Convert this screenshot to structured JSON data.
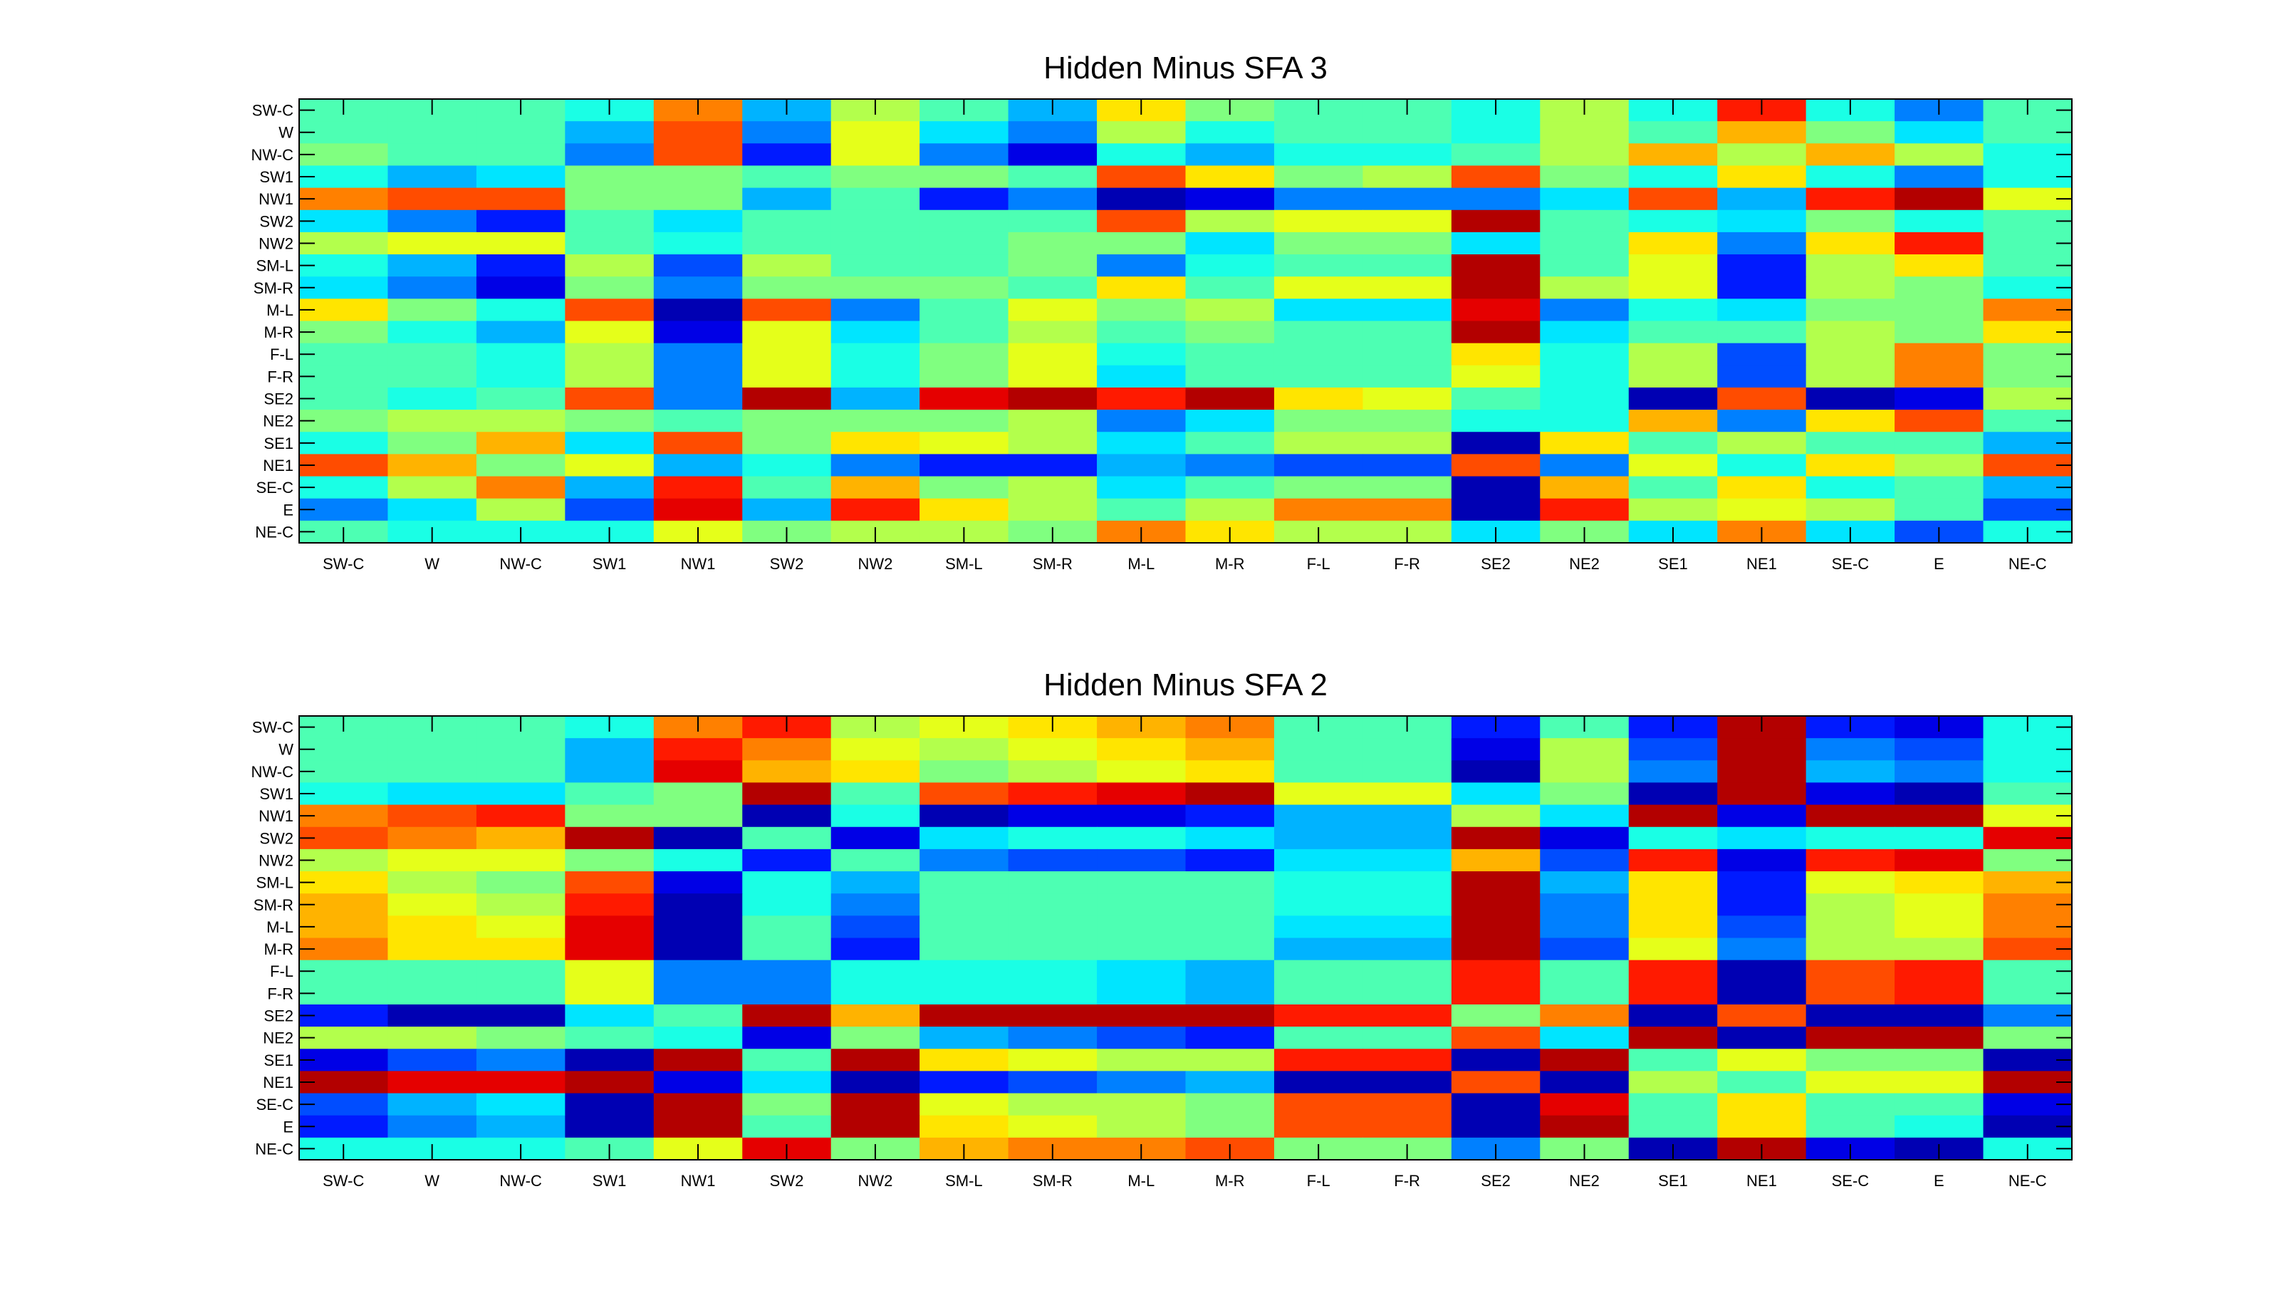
{
  "chart_data": [
    {
      "type": "heatmap",
      "title": "Hidden Minus SFA 3",
      "x_labels": [
        "SW-C",
        "W",
        "NW-C",
        "SW1",
        "NW1",
        "SW2",
        "NW2",
        "SM-L",
        "SM-R",
        "M-L",
        "M-R",
        "F-L",
        "F-R",
        "SE2",
        "NE2",
        "SE1",
        "NE1",
        "SE-C",
        "E",
        "NE-C"
      ],
      "y_labels": [
        "SW-C",
        "W",
        "NW-C",
        "SW1",
        "NW1",
        "SW2",
        "NW2",
        "SM-L",
        "SM-R",
        "M-L",
        "M-R",
        "F-L",
        "F-R",
        "SE2",
        "NE2",
        "SE1",
        "NE1",
        "SE-C",
        "E",
        "NE-C"
      ],
      "colormap": "jet",
      "value_range": [
        0,
        1
      ],
      "values": [
        [
          0.45,
          0.45,
          0.45,
          0.4,
          0.75,
          0.3,
          0.55,
          0.45,
          0.3,
          0.65,
          0.5,
          0.45,
          0.45,
          0.4,
          0.55,
          0.4,
          0.85,
          0.4,
          0.25,
          0.45
        ],
        [
          0.45,
          0.45,
          0.45,
          0.3,
          0.8,
          0.25,
          0.6,
          0.35,
          0.25,
          0.55,
          0.4,
          0.45,
          0.45,
          0.4,
          0.55,
          0.45,
          0.7,
          0.5,
          0.35,
          0.45
        ],
        [
          0.5,
          0.45,
          0.45,
          0.25,
          0.8,
          0.15,
          0.6,
          0.25,
          0.1,
          0.4,
          0.3,
          0.4,
          0.4,
          0.45,
          0.55,
          0.7,
          0.55,
          0.7,
          0.55,
          0.4
        ],
        [
          0.4,
          0.3,
          0.35,
          0.5,
          0.5,
          0.45,
          0.5,
          0.5,
          0.45,
          0.8,
          0.65,
          0.5,
          0.55,
          0.8,
          0.5,
          0.4,
          0.65,
          0.4,
          0.25,
          0.4
        ],
        [
          0.75,
          0.8,
          0.8,
          0.5,
          0.5,
          0.3,
          0.45,
          0.15,
          0.25,
          0.05,
          0.1,
          0.25,
          0.25,
          0.25,
          0.35,
          0.8,
          0.3,
          0.85,
          0.95,
          0.6
        ],
        [
          0.35,
          0.25,
          0.15,
          0.45,
          0.35,
          0.45,
          0.45,
          0.45,
          0.45,
          0.8,
          0.55,
          0.6,
          0.6,
          0.95,
          0.45,
          0.4,
          0.35,
          0.5,
          0.4,
          0.45
        ],
        [
          0.55,
          0.6,
          0.6,
          0.45,
          0.4,
          0.45,
          0.45,
          0.45,
          0.5,
          0.5,
          0.35,
          0.5,
          0.5,
          0.35,
          0.45,
          0.65,
          0.25,
          0.65,
          0.85,
          0.45
        ],
        [
          0.4,
          0.3,
          0.15,
          0.55,
          0.2,
          0.55,
          0.45,
          0.45,
          0.5,
          0.25,
          0.4,
          0.45,
          0.45,
          0.95,
          0.45,
          0.6,
          0.15,
          0.55,
          0.65,
          0.45
        ],
        [
          0.35,
          0.25,
          0.1,
          0.5,
          0.25,
          0.5,
          0.5,
          0.5,
          0.45,
          0.65,
          0.45,
          0.6,
          0.6,
          0.95,
          0.55,
          0.6,
          0.15,
          0.55,
          0.5,
          0.4
        ],
        [
          0.65,
          0.5,
          0.4,
          0.8,
          0.05,
          0.8,
          0.25,
          0.45,
          0.6,
          0.5,
          0.55,
          0.35,
          0.35,
          0.9,
          0.25,
          0.4,
          0.35,
          0.5,
          0.5,
          0.75
        ],
        [
          0.5,
          0.4,
          0.3,
          0.6,
          0.1,
          0.6,
          0.35,
          0.45,
          0.55,
          0.45,
          0.5,
          0.45,
          0.45,
          0.95,
          0.35,
          0.45,
          0.45,
          0.55,
          0.5,
          0.65
        ],
        [
          0.45,
          0.45,
          0.4,
          0.55,
          0.25,
          0.6,
          0.4,
          0.5,
          0.6,
          0.4,
          0.45,
          0.45,
          0.45,
          0.65,
          0.4,
          0.55,
          0.2,
          0.55,
          0.75,
          0.5
        ],
        [
          0.45,
          0.45,
          0.4,
          0.55,
          0.25,
          0.6,
          0.4,
          0.5,
          0.6,
          0.35,
          0.45,
          0.45,
          0.45,
          0.6,
          0.4,
          0.55,
          0.2,
          0.55,
          0.75,
          0.5
        ],
        [
          0.45,
          0.4,
          0.45,
          0.8,
          0.25,
          0.95,
          0.3,
          0.9,
          0.95,
          0.85,
          0.95,
          0.65,
          0.6,
          0.45,
          0.4,
          0.05,
          0.8,
          0.05,
          0.1,
          0.55
        ],
        [
          0.5,
          0.55,
          0.55,
          0.5,
          0.45,
          0.5,
          0.5,
          0.5,
          0.55,
          0.25,
          0.35,
          0.5,
          0.5,
          0.4,
          0.4,
          0.7,
          0.25,
          0.65,
          0.8,
          0.45
        ],
        [
          0.4,
          0.5,
          0.7,
          0.35,
          0.8,
          0.5,
          0.65,
          0.6,
          0.55,
          0.35,
          0.45,
          0.55,
          0.55,
          0.05,
          0.65,
          0.45,
          0.55,
          0.45,
          0.45,
          0.3
        ],
        [
          0.8,
          0.7,
          0.5,
          0.6,
          0.3,
          0.4,
          0.25,
          0.15,
          0.15,
          0.3,
          0.25,
          0.2,
          0.2,
          0.8,
          0.25,
          0.6,
          0.4,
          0.65,
          0.55,
          0.8
        ],
        [
          0.4,
          0.55,
          0.75,
          0.3,
          0.85,
          0.45,
          0.7,
          0.5,
          0.55,
          0.35,
          0.45,
          0.5,
          0.5,
          0.05,
          0.7,
          0.45,
          0.65,
          0.4,
          0.45,
          0.3
        ],
        [
          0.25,
          0.35,
          0.55,
          0.2,
          0.9,
          0.3,
          0.85,
          0.65,
          0.55,
          0.45,
          0.55,
          0.75,
          0.75,
          0.05,
          0.85,
          0.55,
          0.6,
          0.55,
          0.45,
          0.2
        ],
        [
          0.45,
          0.4,
          0.4,
          0.4,
          0.6,
          0.5,
          0.55,
          0.55,
          0.5,
          0.75,
          0.65,
          0.55,
          0.55,
          0.35,
          0.5,
          0.35,
          0.75,
          0.35,
          0.2,
          0.4
        ]
      ]
    },
    {
      "type": "heatmap",
      "title": "Hidden Minus SFA 2",
      "x_labels": [
        "SW-C",
        "W",
        "NW-C",
        "SW1",
        "NW1",
        "SW2",
        "NW2",
        "SM-L",
        "SM-R",
        "M-L",
        "M-R",
        "F-L",
        "F-R",
        "SE2",
        "NE2",
        "SE1",
        "NE1",
        "SE-C",
        "E",
        "NE-C"
      ],
      "y_labels": [
        "SW-C",
        "W",
        "NW-C",
        "SW1",
        "NW1",
        "SW2",
        "NW2",
        "SM-L",
        "SM-R",
        "M-L",
        "M-R",
        "F-L",
        "F-R",
        "SE2",
        "NE2",
        "SE1",
        "NE1",
        "SE-C",
        "E",
        "NE-C"
      ],
      "colormap": "jet",
      "value_range": [
        0,
        1
      ],
      "values": [
        [
          0.45,
          0.45,
          0.45,
          0.4,
          0.75,
          0.85,
          0.55,
          0.6,
          0.65,
          0.7,
          0.75,
          0.45,
          0.45,
          0.15,
          0.45,
          0.15,
          0.95,
          0.15,
          0.1,
          0.4
        ],
        [
          0.45,
          0.45,
          0.45,
          0.3,
          0.85,
          0.75,
          0.6,
          0.55,
          0.6,
          0.65,
          0.7,
          0.45,
          0.45,
          0.1,
          0.55,
          0.2,
          0.95,
          0.25,
          0.2,
          0.4
        ],
        [
          0.45,
          0.45,
          0.45,
          0.3,
          0.9,
          0.7,
          0.65,
          0.5,
          0.55,
          0.6,
          0.65,
          0.45,
          0.45,
          0.05,
          0.55,
          0.25,
          0.95,
          0.3,
          0.25,
          0.4
        ],
        [
          0.4,
          0.35,
          0.35,
          0.45,
          0.5,
          0.95,
          0.45,
          0.8,
          0.85,
          0.9,
          0.95,
          0.6,
          0.6,
          0.35,
          0.5,
          0.05,
          0.95,
          0.1,
          0.05,
          0.45
        ],
        [
          0.75,
          0.8,
          0.85,
          0.5,
          0.5,
          0.05,
          0.4,
          0.05,
          0.1,
          0.1,
          0.15,
          0.3,
          0.3,
          0.55,
          0.35,
          0.95,
          0.1,
          0.95,
          0.95,
          0.6
        ],
        [
          0.8,
          0.75,
          0.7,
          0.95,
          0.05,
          0.45,
          0.1,
          0.35,
          0.4,
          0.4,
          0.35,
          0.3,
          0.3,
          0.95,
          0.1,
          0.4,
          0.35,
          0.4,
          0.4,
          0.9
        ],
        [
          0.55,
          0.6,
          0.6,
          0.5,
          0.4,
          0.15,
          0.45,
          0.25,
          0.2,
          0.2,
          0.15,
          0.35,
          0.35,
          0.7,
          0.2,
          0.85,
          0.1,
          0.85,
          0.9,
          0.5
        ],
        [
          0.65,
          0.55,
          0.5,
          0.8,
          0.1,
          0.4,
          0.3,
          0.45,
          0.45,
          0.45,
          0.45,
          0.4,
          0.4,
          0.95,
          0.3,
          0.65,
          0.15,
          0.6,
          0.65,
          0.7
        ],
        [
          0.7,
          0.6,
          0.55,
          0.85,
          0.05,
          0.4,
          0.25,
          0.45,
          0.45,
          0.45,
          0.45,
          0.4,
          0.4,
          0.95,
          0.25,
          0.65,
          0.15,
          0.55,
          0.6,
          0.75
        ],
        [
          0.7,
          0.65,
          0.6,
          0.9,
          0.05,
          0.45,
          0.2,
          0.45,
          0.45,
          0.45,
          0.45,
          0.35,
          0.35,
          0.95,
          0.25,
          0.65,
          0.2,
          0.55,
          0.6,
          0.75
        ],
        [
          0.75,
          0.65,
          0.65,
          0.9,
          0.05,
          0.45,
          0.15,
          0.45,
          0.45,
          0.45,
          0.45,
          0.3,
          0.3,
          0.95,
          0.2,
          0.6,
          0.25,
          0.55,
          0.55,
          0.8
        ],
        [
          0.45,
          0.45,
          0.45,
          0.6,
          0.25,
          0.25,
          0.4,
          0.4,
          0.4,
          0.35,
          0.3,
          0.45,
          0.45,
          0.85,
          0.45,
          0.85,
          0.05,
          0.8,
          0.85,
          0.45
        ],
        [
          0.45,
          0.45,
          0.45,
          0.6,
          0.25,
          0.25,
          0.4,
          0.4,
          0.4,
          0.35,
          0.3,
          0.45,
          0.45,
          0.85,
          0.45,
          0.85,
          0.05,
          0.8,
          0.85,
          0.45
        ],
        [
          0.15,
          0.05,
          0.05,
          0.35,
          0.45,
          0.95,
          0.7,
          0.95,
          0.95,
          0.95,
          0.95,
          0.85,
          0.85,
          0.5,
          0.75,
          0.05,
          0.8,
          0.05,
          0.05,
          0.25
        ],
        [
          0.55,
          0.55,
          0.5,
          0.45,
          0.4,
          0.1,
          0.5,
          0.3,
          0.25,
          0.2,
          0.15,
          0.45,
          0.45,
          0.8,
          0.35,
          0.95,
          0.05,
          0.95,
          0.95,
          0.5
        ],
        [
          0.1,
          0.2,
          0.25,
          0.05,
          0.95,
          0.45,
          0.95,
          0.65,
          0.6,
          0.55,
          0.55,
          0.85,
          0.85,
          0.05,
          0.95,
          0.45,
          0.6,
          0.5,
          0.5,
          0.05
        ],
        [
          0.95,
          0.9,
          0.9,
          0.95,
          0.1,
          0.35,
          0.05,
          0.15,
          0.2,
          0.25,
          0.3,
          0.05,
          0.05,
          0.8,
          0.05,
          0.55,
          0.45,
          0.6,
          0.6,
          0.95
        ],
        [
          0.2,
          0.3,
          0.35,
          0.05,
          0.95,
          0.5,
          0.95,
          0.6,
          0.55,
          0.55,
          0.5,
          0.8,
          0.8,
          0.05,
          0.9,
          0.45,
          0.65,
          0.45,
          0.45,
          0.1
        ],
        [
          0.15,
          0.25,
          0.3,
          0.05,
          0.95,
          0.45,
          0.95,
          0.65,
          0.6,
          0.55,
          0.5,
          0.8,
          0.8,
          0.05,
          0.95,
          0.45,
          0.65,
          0.45,
          0.4,
          0.05
        ],
        [
          0.4,
          0.4,
          0.4,
          0.45,
          0.6,
          0.9,
          0.5,
          0.7,
          0.75,
          0.75,
          0.8,
          0.5,
          0.5,
          0.25,
          0.5,
          0.05,
          0.95,
          0.1,
          0.05,
          0.4
        ]
      ]
    }
  ]
}
